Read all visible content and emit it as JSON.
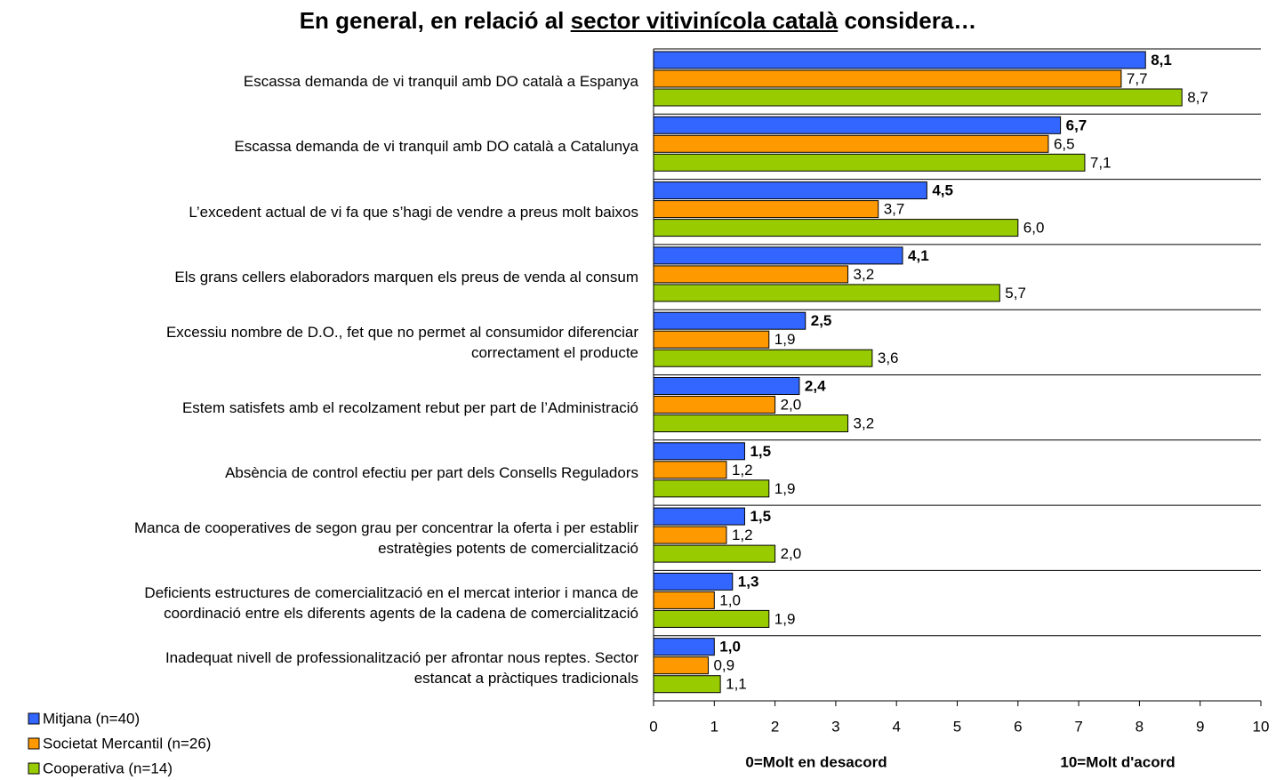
{
  "chart_data": {
    "type": "hbar",
    "title": "En general, en relació al",
    "title_underlined": "sector vitivinícola català",
    "title_end": "considera…",
    "categories": [
      "Escassa demanda de vi tranquil amb DO català a Espanya",
      "Escassa demanda de vi tranquil amb DO català a Catalunya",
      "L’excedent actual de vi fa que s’hagi de vendre a preus molt baixos",
      "Els grans cellers elaboradors marquen els preus de venda al consum",
      "Excessiu nombre de D.O., fet que no permet al consumidor diferenciar\ncorrectament el producte",
      "Estem satisfets amb el recolzament rebut per part de l’Administració",
      "Absència de control efectiu per part dels Consells Reguladors",
      "Manca de cooperatives de segon grau per concentrar la oferta i per establir\nestratègies potents de comercialització",
      "Deficients estructures de comercialització en el mercat interior i manca de\ncoordinació entre els diferents agents de la cadena de comercialització",
      "Inadequat nivell de professionalització per afrontar nous reptes. Sector\nestancat a pràctiques tradicionals"
    ],
    "series": [
      {
        "name": "Mitjana (n=40)",
        "color": "#3366ff",
        "label_bold": true,
        "values": [
          8.1,
          6.7,
          4.5,
          4.1,
          2.5,
          2.4,
          1.5,
          1.5,
          1.3,
          1.0
        ],
        "value_labels": [
          "8,1",
          "6,7",
          "4,5",
          "4,1",
          "2,5",
          "2,4",
          "1,5",
          "1,5",
          "1,3",
          "1,0"
        ]
      },
      {
        "name": "Societat Mercantil (n=26)",
        "color": "#ff9900",
        "label_bold": false,
        "values": [
          7.7,
          6.5,
          3.7,
          3.2,
          1.9,
          2.0,
          1.2,
          1.2,
          1.0,
          0.9
        ],
        "value_labels": [
          "7,7",
          "6,5",
          "3,7",
          "3,2",
          "1,9",
          "2,0",
          "1,2",
          "1,2",
          "1,0",
          "0,9"
        ]
      },
      {
        "name": "Cooperativa (n=14)",
        "color": "#99cc00",
        "label_bold": false,
        "values": [
          8.7,
          7.1,
          6.0,
          5.7,
          3.6,
          3.2,
          1.9,
          2.0,
          1.9,
          1.1
        ],
        "value_labels": [
          "8,7",
          "7,1",
          "6,0",
          "5,7",
          "3,6",
          "3,2",
          "1,9",
          "2,0",
          "1,9",
          "1,1"
        ]
      }
    ],
    "xlim": [
      0,
      10
    ],
    "xticks": [
      0,
      1,
      2,
      3,
      4,
      5,
      6,
      7,
      8,
      9,
      10
    ],
    "xlabel_left": "0=Molt en desacord",
    "xlabel_right": "10=Molt d'acord",
    "legend": "bottom-left"
  }
}
